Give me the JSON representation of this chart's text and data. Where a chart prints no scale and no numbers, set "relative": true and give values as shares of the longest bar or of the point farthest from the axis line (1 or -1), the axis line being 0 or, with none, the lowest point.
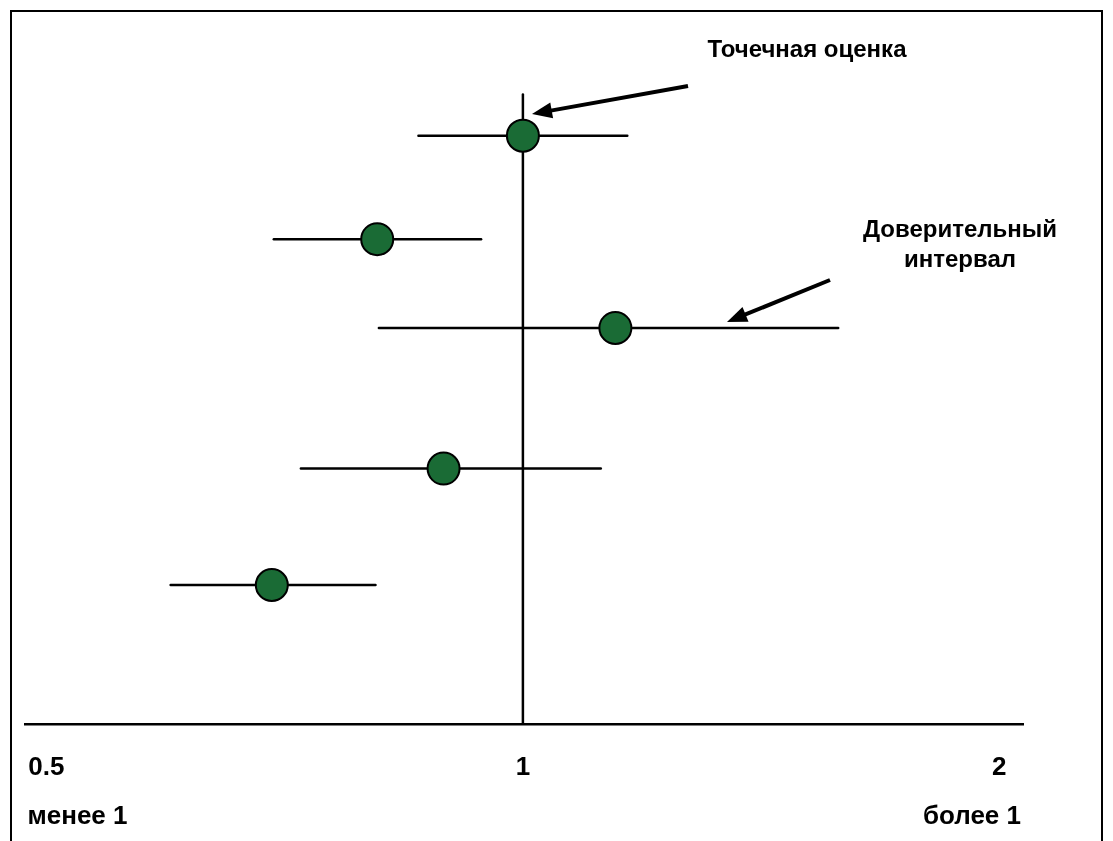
{
  "chart_data": {
    "type": "scatter",
    "relative": true,
    "log": "x",
    "grid": false,
    "legend": false,
    "marker": "circle",
    "x": [
      1.0,
      0.809,
      1.144,
      0.891,
      0.694
    ],
    "values": [
      1,
      0.824,
      0.673,
      0.434,
      0.236
    ],
    "xerrors": [
      [
        0.859,
        1.164
      ],
      [
        0.696,
        0.941
      ],
      [
        0.811,
        1.582
      ],
      [
        0.724,
        1.12
      ],
      [
        0.599,
        0.807
      ]
    ],
    "color": "#1a6b35",
    "xlim": [
      0.485,
      2.07
    ],
    "xticks": [
      0.5,
      1,
      2
    ],
    "ref_lines": [
      {
        "axis": "x",
        "value": 1,
        "color": "#000000"
      }
    ],
    "annotations": [
      "Точечная оценка",
      "Доверительный интервал",
      "менее 1",
      "более 1"
    ]
  }
}
